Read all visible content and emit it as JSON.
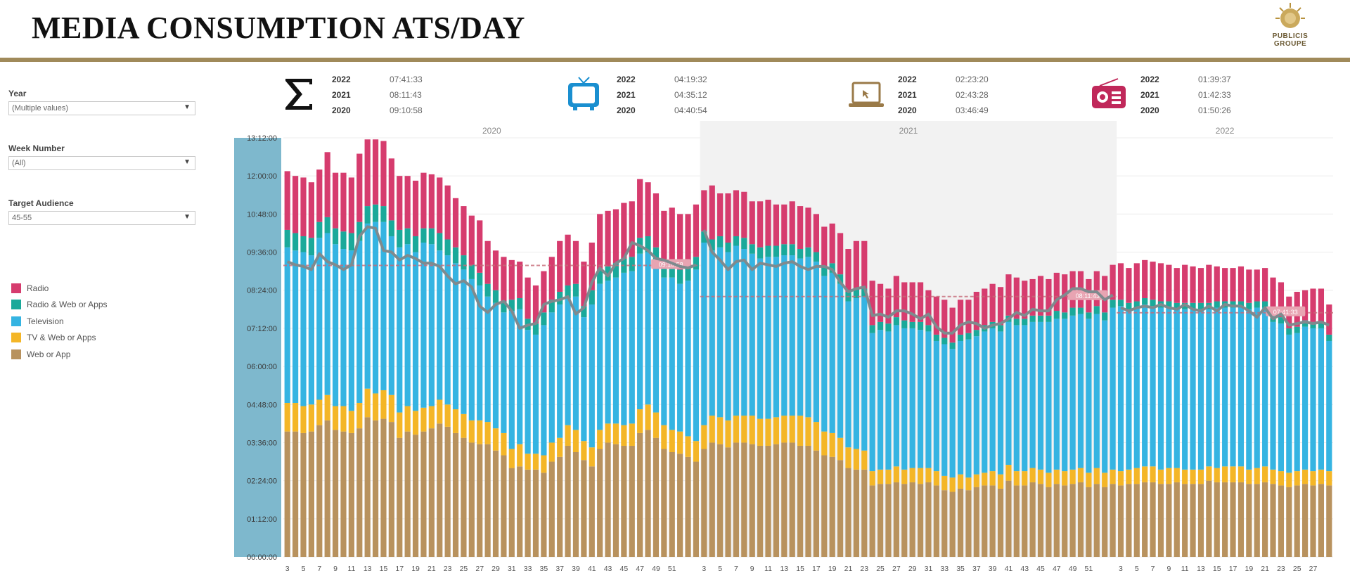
{
  "title": "MEDIA CONSUMPTION ATS/DAY",
  "logo": {
    "line1": "PUBLICIS",
    "line2": "GROUPE"
  },
  "filters": [
    {
      "label": "Year",
      "value": "(Multiple values)"
    },
    {
      "label": "Week Number",
      "value": "(All)"
    },
    {
      "label": "Target Audience",
      "value": "45-55"
    }
  ],
  "legend": [
    {
      "label": "Radio",
      "color": "#d63c6e"
    },
    {
      "label": "Radio & Web or Apps",
      "color": "#1aa99a"
    },
    {
      "label": "Television",
      "color": "#35b4e2"
    },
    {
      "label": "TV & Web or Apps",
      "color": "#f4b627"
    },
    {
      "label": "Web or App",
      "color": "#b8925e"
    }
  ],
  "kpis": [
    {
      "icon": "sigma-icon",
      "color": "#111111",
      "rows": [
        {
          "year": "2022",
          "value": "07:41:33"
        },
        {
          "year": "2021",
          "value": "08:11:43"
        },
        {
          "year": "2020",
          "value": "09:10:58"
        }
      ]
    },
    {
      "icon": "tv-icon",
      "color": "#1a8fd0",
      "rows": [
        {
          "year": "2022",
          "value": "04:19:32"
        },
        {
          "year": "2021",
          "value": "04:35:12"
        },
        {
          "year": "2020",
          "value": "04:40:54"
        }
      ]
    },
    {
      "icon": "laptop-icon",
      "color": "#9a7a48",
      "rows": [
        {
          "year": "2022",
          "value": "02:23:20"
        },
        {
          "year": "2021",
          "value": "02:43:28"
        },
        {
          "year": "2020",
          "value": "03:46:49"
        }
      ]
    },
    {
      "icon": "radio-icon",
      "color": "#c0285a",
      "rows": [
        {
          "year": "2022",
          "value": "01:39:37"
        },
        {
          "year": "2021",
          "value": "01:42:33"
        },
        {
          "year": "2020",
          "value": "01:50:26"
        }
      ]
    }
  ],
  "chart_data": {
    "type": "bar",
    "stacked": true,
    "y_unit": "hours",
    "ylim": [
      0,
      13.2
    ],
    "y_ticks": [
      "00:00:00",
      "01:12:00",
      "02:24:00",
      "03:36:00",
      "04:48:00",
      "06:00:00",
      "07:12:00",
      "08:24:00",
      "09:36:00",
      "10:48:00",
      "12:00:00",
      "13:12:00"
    ],
    "panels": [
      {
        "year": "2020",
        "shaded": false,
        "avg_hours": 9.18,
        "avg_label": "09:10:58",
        "x_labels": [
          "3",
          "5",
          "7",
          "9",
          "11",
          "13",
          "15",
          "17",
          "19",
          "21",
          "23",
          "25",
          "27",
          "29",
          "31",
          "33",
          "35",
          "37",
          "39",
          "41",
          "43",
          "45",
          "47",
          "49",
          "51"
        ],
        "series": {
          "Web or App": [
            3.95,
            3.95,
            3.9,
            3.95,
            4.15,
            4.3,
            4,
            3.95,
            3.9,
            4.05,
            4.4,
            4.3,
            4.35,
            4.25,
            3.75,
            3.95,
            3.85,
            3.95,
            4.05,
            4.2,
            4.1,
            3.9,
            3.75,
            3.6,
            3.55,
            3.55,
            3.35,
            3.2,
            2.8,
            2.85,
            2.75,
            2.75,
            2.65,
            3,
            3.15,
            3.5,
            3.3,
            3.05,
            2.85,
            3.4,
            3.6,
            3.55,
            3.5,
            3.5,
            3.9,
            4,
            3.75,
            3.4,
            3.3,
            3.25,
            3.15,
            3
          ],
          "TV & Web or Apps": [
            0.9,
            0.9,
            0.85,
            0.85,
            0.8,
            0.8,
            0.75,
            0.8,
            0.7,
            0.8,
            0.9,
            0.85,
            0.9,
            0.85,
            0.8,
            0.8,
            0.75,
            0.75,
            0.7,
            0.75,
            0.7,
            0.75,
            0.75,
            0.7,
            0.75,
            0.7,
            0.7,
            0.7,
            0.6,
            0.7,
            0.5,
            0.5,
            0.55,
            0.6,
            0.6,
            0.65,
            0.7,
            0.6,
            0.6,
            0.6,
            0.6,
            0.65,
            0.65,
            0.7,
            0.75,
            0.8,
            0.8,
            0.75,
            0.7,
            0.7,
            0.65,
            0.65
          ],
          "Television": [
            4.9,
            4.8,
            4.85,
            4.7,
            5.1,
            5.1,
            5.1,
            4.95,
            5.05,
            5.1,
            5.2,
            5.4,
            5.3,
            5,
            5.2,
            5.1,
            5,
            5.2,
            5.1,
            4.7,
            4.7,
            4.6,
            4.55,
            4.45,
            4.25,
            3.95,
            3.95,
            3.8,
            4.35,
            4.25,
            3.9,
            3.75,
            4.1,
            4.1,
            4.2,
            4,
            4.2,
            3.9,
            4.5,
            4.6,
            4.5,
            4.6,
            4.8,
            4.8,
            4.9,
            4.8,
            4.7,
            4.65,
            4.8,
            4.65,
            4.9,
            5.4
          ],
          "Radio & Web or Apps": [
            0.55,
            0.55,
            0.5,
            0.55,
            0.5,
            0.5,
            0.5,
            0.55,
            0.55,
            0.6,
            0.55,
            0.55,
            0.5,
            0.5,
            0.55,
            0.5,
            0.5,
            0.45,
            0.5,
            0.55,
            0.5,
            0.5,
            0.45,
            0.45,
            0.4,
            0.4,
            0.4,
            0.35,
            0.35,
            0.35,
            0.35,
            0.35,
            0.4,
            0.4,
            0.4,
            0.4,
            0.4,
            0.35,
            0.45,
            0.45,
            0.45,
            0.45,
            0.45,
            0.45,
            0.5,
            0.5,
            0.5,
            0.45,
            0.45,
            0.45,
            0.45,
            0.4
          ],
          "Radio": [
            1.85,
            1.8,
            1.85,
            1.75,
            1.65,
            2.05,
            1.75,
            1.85,
            1.75,
            2.15,
            2.1,
            2.05,
            2.05,
            1.95,
            1.7,
            1.65,
            1.75,
            1.75,
            1.7,
            1.75,
            1.7,
            1.55,
            1.55,
            1.55,
            1.65,
            1.35,
            1.25,
            1.4,
            1.25,
            1.15,
            1.3,
            1.2,
            1.3,
            1.35,
            1.6,
            1.6,
            1.35,
            1.4,
            1.5,
            1.75,
            1.75,
            1.7,
            1.75,
            1.75,
            1.85,
            1.7,
            1.7,
            1.65,
            1.75,
            1.75,
            1.65,
            1.65
          ]
        },
        "line": [
          9.3,
          9.2,
          9.15,
          9.05,
          9.55,
          9.3,
          9.2,
          9.05,
          9.2,
          10.1,
          10.4,
          10.35,
          9.65,
          9.6,
          9.35,
          9.5,
          9.4,
          9.25,
          9.25,
          9.15,
          8.85,
          8.6,
          8.7,
          8.5,
          7.9,
          7.7,
          7.95,
          8.05,
          7.75,
          7.2,
          7.3,
          7.35,
          7.95,
          8.05,
          8.1,
          8.2,
          7.65,
          7.85,
          8.65,
          9.1,
          8.85,
          9.25,
          9.4,
          9.9,
          9.8,
          9.65,
          9.4,
          9.35,
          9.25,
          9.15,
          9.1,
          9.2
        ]
      },
      {
        "year": "2021",
        "shaded": true,
        "avg_hours": 8.2,
        "avg_label": "08:11:43",
        "x_labels": [
          "3",
          "5",
          "7",
          "9",
          "11",
          "13",
          "15",
          "17",
          "19",
          "21",
          "23",
          "25",
          "27",
          "29",
          "31",
          "33",
          "35",
          "37",
          "39",
          "41",
          "43",
          "45",
          "47",
          "49",
          "51"
        ],
        "series": {
          "Web or App": [
            3.4,
            3.6,
            3.55,
            3.45,
            3.6,
            3.6,
            3.55,
            3.5,
            3.5,
            3.55,
            3.6,
            3.6,
            3.5,
            3.5,
            3.35,
            3.2,
            3.15,
            3.05,
            2.8,
            2.75,
            2.75,
            2.25,
            2.3,
            2.3,
            2.35,
            2.3,
            2.35,
            2.3,
            2.35,
            2.25,
            2.1,
            2.05,
            2.15,
            2.1,
            2.2,
            2.25,
            2.25,
            2.15,
            2.4,
            2.25,
            2.25,
            2.35,
            2.3,
            2.2,
            2.3,
            2.25,
            2.3,
            2.35,
            2.2,
            2.3,
            2.2,
            2.3
          ],
          "TV & Web or Apps": [
            0.75,
            0.85,
            0.85,
            0.85,
            0.85,
            0.85,
            0.9,
            0.85,
            0.85,
            0.85,
            0.85,
            0.85,
            0.95,
            0.9,
            0.9,
            0.75,
            0.75,
            0.7,
            0.65,
            0.65,
            0.6,
            0.45,
            0.45,
            0.45,
            0.5,
            0.45,
            0.45,
            0.5,
            0.45,
            0.45,
            0.45,
            0.45,
            0.45,
            0.4,
            0.4,
            0.4,
            0.45,
            0.45,
            0.5,
            0.45,
            0.45,
            0.45,
            0.45,
            0.45,
            0.45,
            0.45,
            0.45,
            0.45,
            0.45,
            0.5,
            0.45,
            0.45
          ],
          "Television": [
            5.75,
            5.2,
            5.35,
            5.3,
            5.35,
            5.25,
            5.1,
            5.05,
            5.1,
            5.05,
            5.05,
            5.05,
            4.95,
            5.05,
            5.05,
            4.9,
            5.05,
            4.85,
            4.6,
            4.75,
            4.85,
            4.35,
            4.4,
            4.35,
            4.45,
            4.45,
            4.4,
            4.35,
            4.3,
            4.1,
            4.15,
            4.05,
            4.2,
            4.35,
            4.35,
            4.45,
            4.5,
            4.5,
            4.5,
            4.6,
            4.6,
            4.6,
            4.65,
            4.75,
            4.75,
            4.8,
            4.85,
            4.85,
            4.85,
            4.85,
            4.8,
            5.1
          ],
          "Radio & Web or Apps": [
            0.35,
            0.35,
            0.35,
            0.3,
            0.3,
            0.35,
            0.3,
            0.35,
            0.35,
            0.35,
            0.35,
            0.35,
            0.3,
            0.3,
            0.3,
            0.3,
            0.3,
            0.3,
            0.3,
            0.3,
            0.25,
            0.25,
            0.25,
            0.25,
            0.25,
            0.25,
            0.2,
            0.25,
            0.2,
            0.2,
            0.2,
            0.2,
            0.2,
            0.2,
            0.2,
            0.2,
            0.2,
            0.2,
            0.2,
            0.2,
            0.2,
            0.2,
            0.2,
            0.2,
            0.25,
            0.2,
            0.25,
            0.2,
            0.2,
            0.25,
            0.25,
            0.25
          ],
          "Radio": [
            1.3,
            1.7,
            1.35,
            1.55,
            1.45,
            1.45,
            1.35,
            1.45,
            1.45,
            1.3,
            1.25,
            1.35,
            1.35,
            1.25,
            1.2,
            1.25,
            1.25,
            1.3,
            1.35,
            1.5,
            1.5,
            1.4,
            1.2,
            1.1,
            1.3,
            1.2,
            1.25,
            1.25,
            1.1,
            1.2,
            1.2,
            1.1,
            1.1,
            1.05,
            1.2,
            1.15,
            1.2,
            1.2,
            1.3,
            1.3,
            1.2,
            1.15,
            1.25,
            1.15,
            1.2,
            1.2,
            1.15,
            1.15,
            1.05,
            1.1,
            1.15,
            1.1
          ]
        },
        "line": [
          10.3,
          9.6,
          9.35,
          9.05,
          9.3,
          9.35,
          9.05,
          9.25,
          9.2,
          9.15,
          9.25,
          9.3,
          9.15,
          9.05,
          9.15,
          9.15,
          9.05,
          8.65,
          8.35,
          8.45,
          8.5,
          7.6,
          7.65,
          7.55,
          7.75,
          7.75,
          7.65,
          7.5,
          7.65,
          7.25,
          7.05,
          7.05,
          7.3,
          7.4,
          7.35,
          7.2,
          7.3,
          7.35,
          7.5,
          7.7,
          7.6,
          7.8,
          7.75,
          7.75,
          8.1,
          8.25,
          8.45,
          8.45,
          8.35,
          8.35,
          8.1,
          8.25
        ]
      },
      {
        "year": "2022",
        "shaded": false,
        "avg_hours": 7.69,
        "avg_label": "07:41:33",
        "x_labels": [
          "3",
          "5",
          "7",
          "9",
          "11",
          "13",
          "15",
          "17",
          "19",
          "21",
          "23",
          "25",
          "27"
        ],
        "series": {
          "Web or App": [
            2.25,
            2.3,
            2.3,
            2.35,
            2.35,
            2.3,
            2.3,
            2.35,
            2.3,
            2.3,
            2.3,
            2.4,
            2.35,
            2.35,
            2.35,
            2.35,
            2.3,
            2.3,
            2.35,
            2.3,
            2.25,
            2.2,
            2.25,
            2.3,
            2.25,
            2.3,
            2.25
          ],
          "TV & Web or Apps": [
            0.45,
            0.45,
            0.5,
            0.5,
            0.5,
            0.45,
            0.5,
            0.45,
            0.45,
            0.45,
            0.45,
            0.45,
            0.45,
            0.5,
            0.5,
            0.5,
            0.45,
            0.5,
            0.5,
            0.45,
            0.45,
            0.45,
            0.45,
            0.45,
            0.45,
            0.45,
            0.45
          ],
          "Television": [
            5.2,
            5.05,
            5.05,
            5.1,
            5.05,
            5.1,
            5.05,
            5,
            5.05,
            5.05,
            5.05,
            4.95,
            5.05,
            5,
            5,
            5,
            5.05,
            5.05,
            5,
            4.65,
            4.65,
            4.35,
            4.35,
            4.5,
            4.5,
            4.45,
            4.1
          ],
          "Radio & Web or Apps": [
            0.2,
            0.2,
            0.2,
            0.2,
            0.2,
            0.2,
            0.2,
            0.2,
            0.2,
            0.2,
            0.2,
            0.2,
            0.2,
            0.2,
            0.2,
            0.2,
            0.2,
            0.2,
            0.2,
            0.2,
            0.2,
            0.2,
            0.2,
            0.2,
            0.2,
            0.2,
            0.2
          ],
          "Radio": [
            1.15,
            1.1,
            1.2,
            1.2,
            1.2,
            1.2,
            1.15,
            1.1,
            1.2,
            1.15,
            1.1,
            1.2,
            1.1,
            1.05,
            1.05,
            1.1,
            1.05,
            1,
            1.05,
            1.2,
            1.1,
            1,
            1.1,
            0.95,
            1.05,
            1.05,
            0.95
          ]
        },
        "line": [
          7.85,
          7.75,
          7.85,
          7.9,
          7.85,
          7.95,
          7.85,
          7.8,
          7.95,
          7.8,
          7.75,
          7.9,
          7.75,
          7.95,
          7.9,
          7.9,
          7.75,
          7.55,
          7.85,
          7.5,
          7.65,
          7.3,
          7.35,
          7.4,
          7.35,
          7.4,
          7.3
        ]
      }
    ]
  }
}
